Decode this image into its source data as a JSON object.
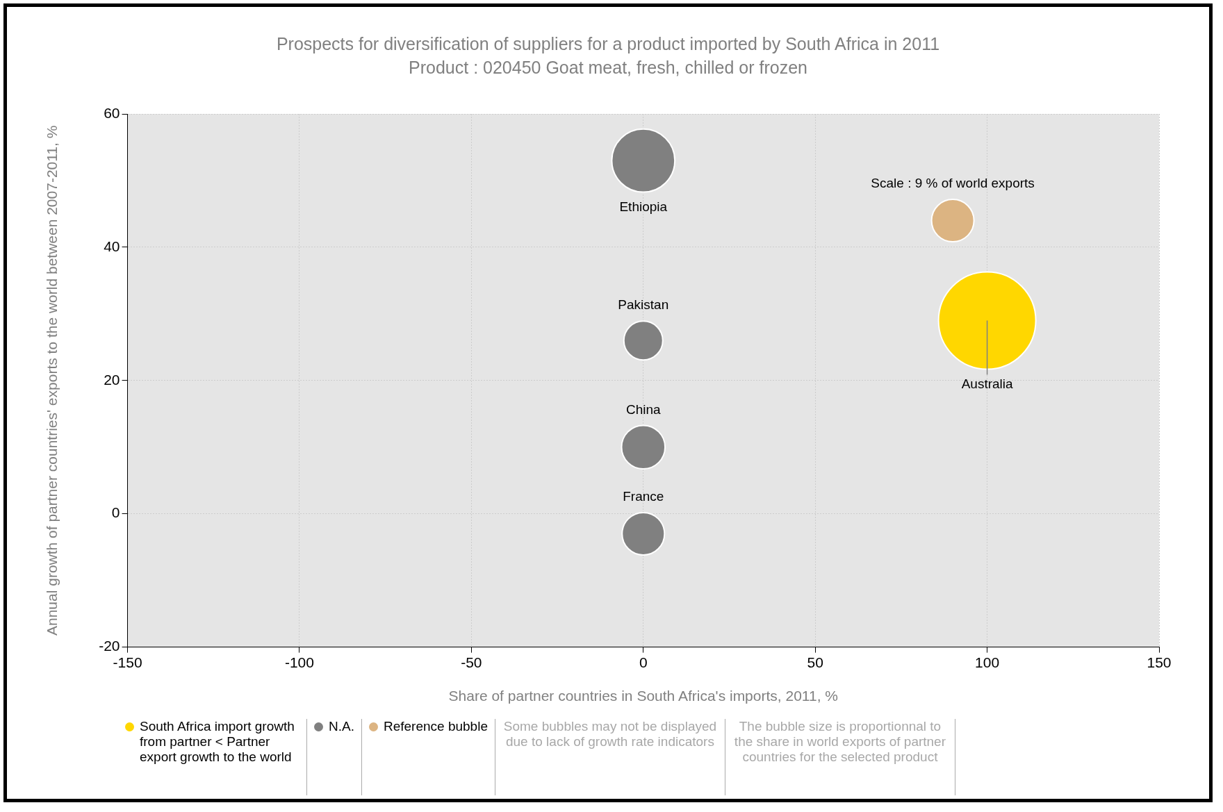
{
  "chart_data": {
    "type": "bubble",
    "title": "Prospects for diversification of suppliers for a product imported by South Africa in 2011",
    "subtitle": "Product : 020450 Goat meat, fresh, chilled or frozen",
    "xlabel": "Share of partner countries in South Africa's imports, 2011, %",
    "ylabel": "Annual growth of partner countries' exports to the world between 2007-2011, %",
    "xlim": [
      -150,
      150
    ],
    "xticks": [
      -150,
      -100,
      -50,
      0,
      50,
      100,
      150
    ],
    "ylim": [
      -20,
      60
    ],
    "yticks": [
      -20,
      0,
      20,
      40,
      60
    ],
    "grid": true,
    "legend": "bottom",
    "series": [
      {
        "name": "South Africa import growth from partner < Partner export growth to the world",
        "color": "#ffd700",
        "x": [
          100
        ],
        "values": [
          29
        ],
        "sizes": [
          1
        ]
      },
      {
        "name": "N.A.",
        "color": "#808080",
        "x": [
          0,
          0,
          0,
          0
        ],
        "values": [
          53,
          26,
          10,
          -3
        ],
        "sizes": [
          0.42,
          0.16,
          0.2,
          0.19
        ]
      },
      {
        "name": "Reference bubble",
        "color": "#dcb482",
        "x": [
          90
        ],
        "values": [
          44
        ],
        "sizes": [
          0.19
        ]
      }
    ],
    "annotations": [
      {
        "text": "Ethiopia",
        "x": 0,
        "y": 53
      },
      {
        "text": "Pakistan",
        "x": 0,
        "y": 26
      },
      {
        "text": "China",
        "x": 0,
        "y": 10
      },
      {
        "text": "France",
        "x": 0,
        "y": -3
      },
      {
        "text": "Australia",
        "x": 100,
        "y": 29
      },
      {
        "text": "Scale : 9 % of world exports",
        "x": 90,
        "y": 44
      },
      "Some bubbles may not be displayed due to lack of growth rate indicators",
      "The bubble size is proportionnal to the share in world exports of partner countries for the selected product"
    ]
  }
}
